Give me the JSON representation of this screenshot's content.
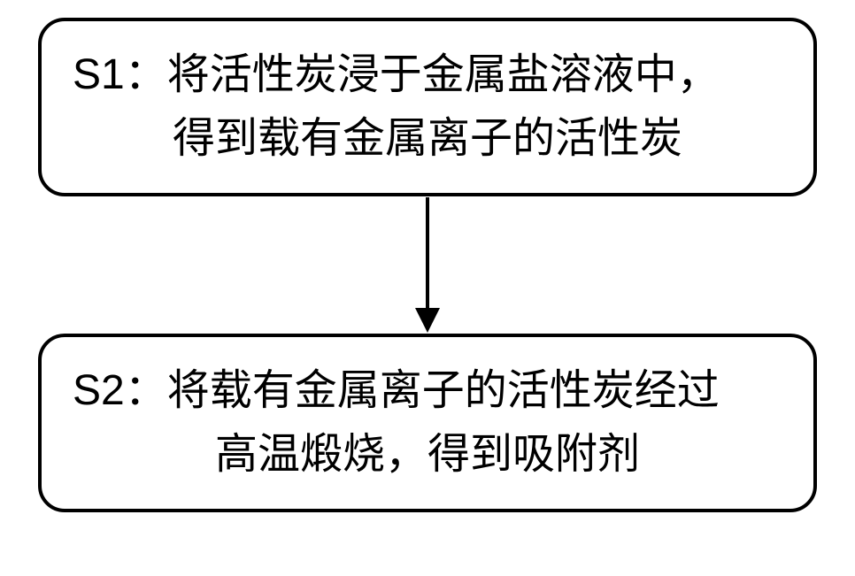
{
  "flowchart": {
    "type": "flowchart",
    "background_color": "#ffffff",
    "border_color": "#000000",
    "border_width": 4,
    "border_radius": 30,
    "text_color": "#000000",
    "font_size": 48,
    "arrow_color": "#000000",
    "arrow_line_width": 4,
    "arrow_head_size": 28,
    "nodes": [
      {
        "id": "s1",
        "label_prefix": "S1：",
        "text_line1": "将活性炭浸于金属盐溶液中，",
        "text_line2": "得到载有金属离子的活性炭"
      },
      {
        "id": "s2",
        "label_prefix": "S2：",
        "text_line1": "将载有金属离子的活性炭经过",
        "text_line2": "高温煅烧，得到吸附剂"
      }
    ],
    "edges": [
      {
        "from": "s1",
        "to": "s2",
        "type": "arrow"
      }
    ]
  }
}
